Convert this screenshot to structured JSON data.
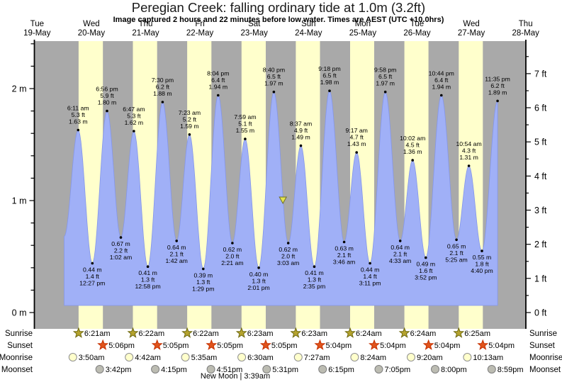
{
  "colors": {
    "background": "#ffffff",
    "night_band": "#a9a9a9",
    "daylight_band": "#ffffcc",
    "tide_fill": "#a0b0f7",
    "tide_edge": "#8496ea",
    "day_label": "#ff3333",
    "text": "#000000",
    "marker_fill": "#e3e34d",
    "marker_stroke": "#6f6f28"
  },
  "chart_data": {
    "type": "area",
    "title": "Peregian Creek: falling  ordinary tide at 1.0m (3.2ft)",
    "subtitle": "Image captured 2 hours and 22 minutes before low water. Times are AEST (UTC +10.0hrs)",
    "x_axis": {
      "days": [
        {
          "name": "Tue",
          "date": "19-May"
        },
        {
          "name": "Wed",
          "date": "20-May"
        },
        {
          "name": "Thu",
          "date": "21-May"
        },
        {
          "name": "Fri",
          "date": "22-May"
        },
        {
          "name": "Sat",
          "date": "23-May"
        },
        {
          "name": "Sun",
          "date": "24-May"
        },
        {
          "name": "Mon",
          "date": "25-May"
        },
        {
          "name": "Tue",
          "date": "26-May"
        },
        {
          "name": "Wed",
          "date": "27-May"
        },
        {
          "name": "Thu",
          "date": "28-May"
        }
      ]
    },
    "y_axis_left": {
      "unit": "m",
      "labels": [
        "0 m",
        "1 m",
        "2 m"
      ],
      "values": [
        0,
        1,
        2
      ],
      "minor_step": 0.2,
      "range": [
        -0.15,
        2.42
      ]
    },
    "y_axis_right": {
      "unit": "ft",
      "labels": [
        "0 ft",
        "1 ft",
        "2 ft",
        "3 ft",
        "4 ft",
        "5 ft",
        "6 ft",
        "7 ft"
      ],
      "values": [
        0,
        1,
        2,
        3,
        4,
        5,
        6,
        7
      ],
      "minor_step": 0.5
    },
    "tide_events": [
      {
        "day": 1,
        "time": "6:11 am",
        "type": "high",
        "m": "1.63",
        "ft": "5.3"
      },
      {
        "day": 1,
        "time": "12:27 pm",
        "type": "low",
        "m": "0.44",
        "ft": "1.4"
      },
      {
        "day": 1,
        "time": "6:56 pm",
        "type": "high",
        "m": "1.80",
        "ft": "5.9"
      },
      {
        "day": 2,
        "time": "1:02 am",
        "type": "low",
        "m": "0.67",
        "ft": "2.2"
      },
      {
        "day": 2,
        "time": "6:47 am",
        "type": "high",
        "m": "1.62",
        "ft": "5.3"
      },
      {
        "day": 2,
        "time": "12:58 pm",
        "type": "low",
        "m": "0.41",
        "ft": "1.3"
      },
      {
        "day": 2,
        "time": "7:30 pm",
        "type": "high",
        "m": "1.88",
        "ft": "6.2"
      },
      {
        "day": 3,
        "time": "1:42 am",
        "type": "low",
        "m": "0.64",
        "ft": "2.1"
      },
      {
        "day": 3,
        "time": "7:23 am",
        "type": "high",
        "m": "1.59",
        "ft": "5.2"
      },
      {
        "day": 3,
        "time": "1:29 pm",
        "type": "low",
        "m": "0.39",
        "ft": "1.3"
      },
      {
        "day": 3,
        "time": "8:04 pm",
        "type": "high",
        "m": "1.94",
        "ft": "6.4"
      },
      {
        "day": 4,
        "time": "2:21 am",
        "type": "low",
        "m": "0.62",
        "ft": "2.0"
      },
      {
        "day": 4,
        "time": "7:59 am",
        "type": "high",
        "m": "1.55",
        "ft": "5.1"
      },
      {
        "day": 4,
        "time": "2:01 pm",
        "type": "low",
        "m": "0.40",
        "ft": "1.3"
      },
      {
        "day": 4,
        "time": "8:40 pm",
        "type": "high",
        "m": "1.97",
        "ft": "6.5"
      },
      {
        "day": 5,
        "time": "3:03 am",
        "type": "low",
        "m": "0.62",
        "ft": "2.0"
      },
      {
        "day": 5,
        "time": "8:37 am",
        "type": "high",
        "m": "1.49",
        "ft": "4.9"
      },
      {
        "day": 5,
        "time": "2:35 pm",
        "type": "low",
        "m": "0.41",
        "ft": "1.3"
      },
      {
        "day": 5,
        "time": "9:18 pm",
        "type": "high",
        "m": "1.98",
        "ft": "6.5"
      },
      {
        "day": 6,
        "time": "3:46 am",
        "type": "low",
        "m": "0.63",
        "ft": "2.1"
      },
      {
        "day": 6,
        "time": "9:17 am",
        "type": "high",
        "m": "1.43",
        "ft": "4.7"
      },
      {
        "day": 6,
        "time": "3:11 pm",
        "type": "low",
        "m": "0.44",
        "ft": "1.4"
      },
      {
        "day": 6,
        "time": "9:58 pm",
        "type": "high",
        "m": "1.97",
        "ft": "6.5"
      },
      {
        "day": 7,
        "time": "4:33 am",
        "type": "low",
        "m": "0.64",
        "ft": "2.1"
      },
      {
        "day": 7,
        "time": "10:02 am",
        "type": "high",
        "m": "1.36",
        "ft": "4.5"
      },
      {
        "day": 7,
        "time": "3:52 pm",
        "type": "low",
        "m": "0.49",
        "ft": "1.6"
      },
      {
        "day": 7,
        "time": "10:44 pm",
        "type": "high",
        "m": "1.94",
        "ft": "6.4"
      },
      {
        "day": 8,
        "time": "5:25 am",
        "type": "low",
        "m": "0.65",
        "ft": "2.1"
      },
      {
        "day": 8,
        "time": "10:54 am",
        "type": "high",
        "m": "1.31",
        "ft": "4.3"
      },
      {
        "day": 8,
        "time": "4:40 pm",
        "type": "low",
        "m": "0.55",
        "ft": "1.8"
      },
      {
        "day": 8,
        "time": "11:35 pm",
        "type": "high",
        "m": "1.89",
        "ft": "6.2"
      }
    ],
    "current_marker": {
      "day": 5,
      "time": "12:41 am",
      "height_m": "1.0"
    },
    "astro": {
      "rows": [
        {
          "label": "Sunrise",
          "icon": "sunrise-star-icon",
          "shape": "star",
          "fill": "#b5a32e",
          "stroke": "#6e6910",
          "times": [
            "6:21am",
            "6:22am",
            "6:22am",
            "6:23am",
            "6:23am",
            "6:24am",
            "6:24am",
            "6:25am"
          ]
        },
        {
          "label": "Sunset",
          "icon": "sunset-star-icon",
          "shape": "star",
          "fill": "#e0541c",
          "stroke": "#c63000",
          "times": [
            "5:06pm",
            "5:05pm",
            "5:05pm",
            "5:05pm",
            "5:04pm",
            "5:04pm",
            "5:04pm",
            "5:04pm"
          ]
        },
        {
          "label": "Moonrise",
          "icon": "moonrise-circle-icon",
          "shape": "circle",
          "fill": "#ffffcc",
          "stroke": "#8f8f8f",
          "times": [
            "3:50am",
            "4:42am",
            "5:35am",
            "6:30am",
            "7:27am",
            "8:24am",
            "9:20am",
            "10:13am"
          ]
        },
        {
          "label": "Moonset",
          "icon": "moonset-circle-icon",
          "shape": "circle",
          "fill": "#bcbcb2",
          "stroke": "#7f7f7f",
          "times": [
            "3:42pm",
            "4:15pm",
            "4:51pm",
            "5:31pm",
            "6:15pm",
            "7:05pm",
            "8:00pm",
            "8:59pm"
          ]
        }
      ],
      "moon_event": {
        "label": "New Moon | 3:39am",
        "day": 4,
        "time": "3:39am"
      }
    }
  }
}
